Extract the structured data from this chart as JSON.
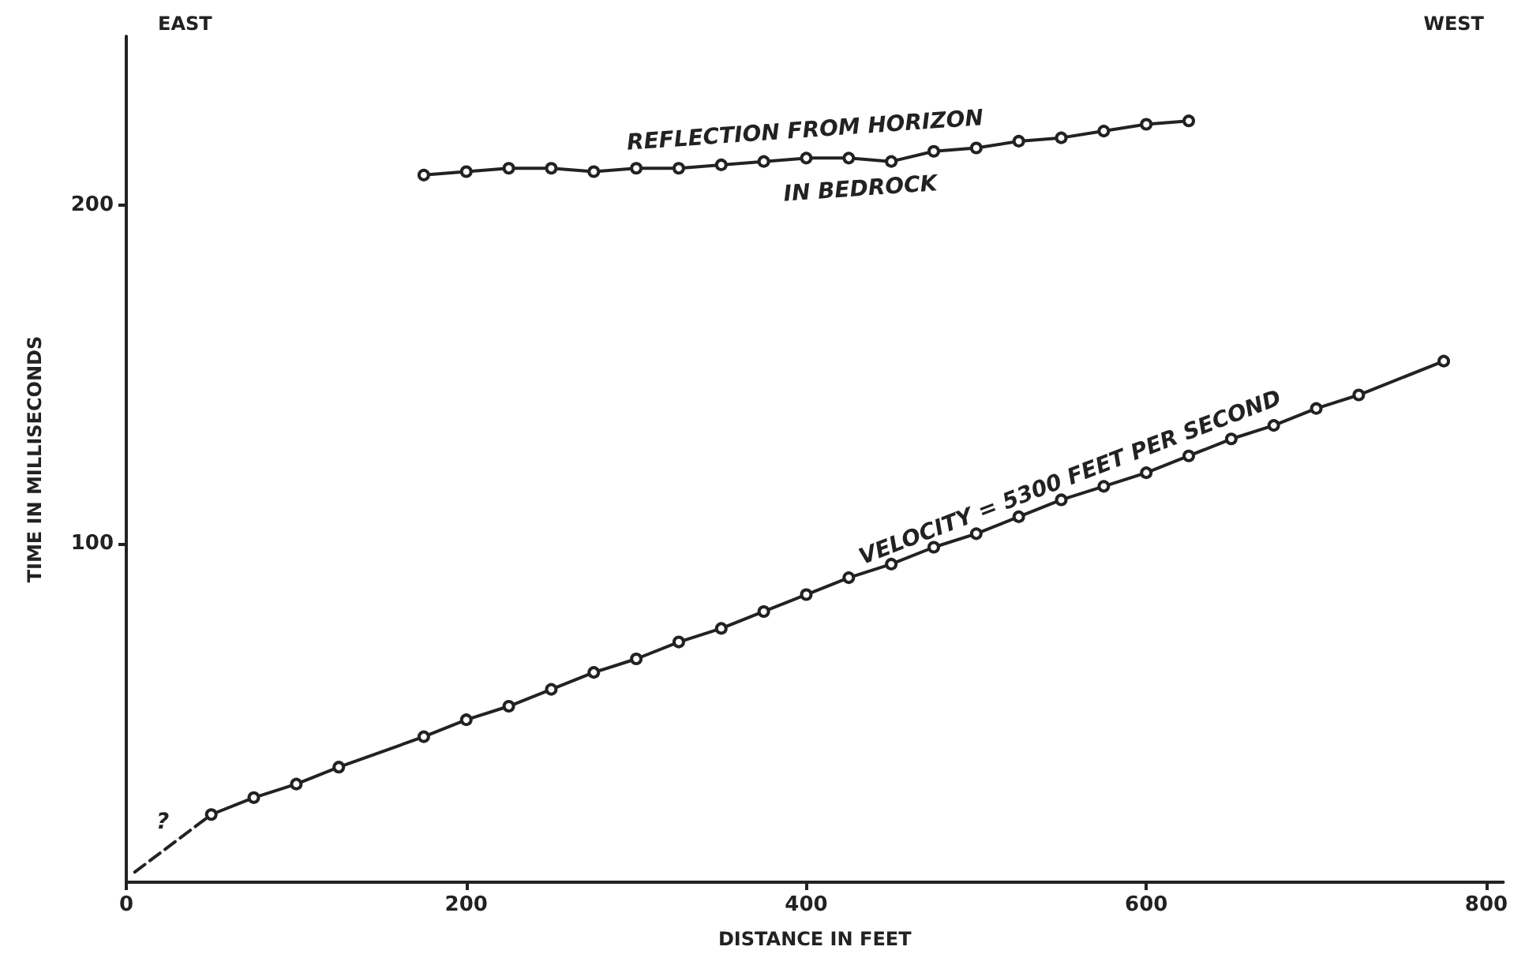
{
  "chart_data": {
    "type": "line",
    "xlabel": "DISTANCE IN FEET",
    "ylabel": "TIME IN MILLISECONDS",
    "xlim": [
      0,
      810
    ],
    "ylim": [
      0,
      250
    ],
    "xticks": [
      0,
      200,
      400,
      600,
      800
    ],
    "yticks": [
      100,
      200
    ],
    "grid": false,
    "marker": "circle",
    "series": [
      {
        "color": "#222222",
        "x": [
          175,
          200,
          225,
          250,
          275,
          300,
          325,
          350,
          375,
          400,
          425,
          450,
          475,
          500,
          525,
          550,
          575,
          600,
          625
        ],
        "values": [
          209,
          210,
          211,
          211,
          210,
          211,
          211,
          212,
          213,
          214,
          214,
          213,
          216,
          217,
          219,
          220,
          222,
          224,
          225
        ]
      },
      {
        "color": "#222222",
        "x": [
          50,
          75,
          100,
          125,
          175,
          200,
          225,
          250,
          275,
          300,
          325,
          350,
          375,
          400,
          425,
          450,
          475,
          500,
          525,
          550,
          575,
          600,
          625,
          650,
          675,
          700,
          725,
          775
        ],
        "values": [
          20,
          25,
          29,
          34,
          43,
          48,
          52,
          57,
          62,
          66,
          71,
          75,
          80,
          85,
          90,
          94,
          99,
          103,
          108,
          113,
          117,
          121,
          126,
          131,
          135,
          140,
          144,
          154
        ]
      },
      {
        "color": "#222222",
        "marker": "none",
        "line_style": "dashed",
        "x": [
          5,
          50
        ],
        "values": [
          3,
          20
        ]
      }
    ],
    "annotations": [
      "EAST",
      "WEST",
      "REFLECTION FROM HORIZON",
      "IN BEDROCK",
      "VELOCITY = 5300 FEET PER SECOND",
      "?"
    ]
  }
}
